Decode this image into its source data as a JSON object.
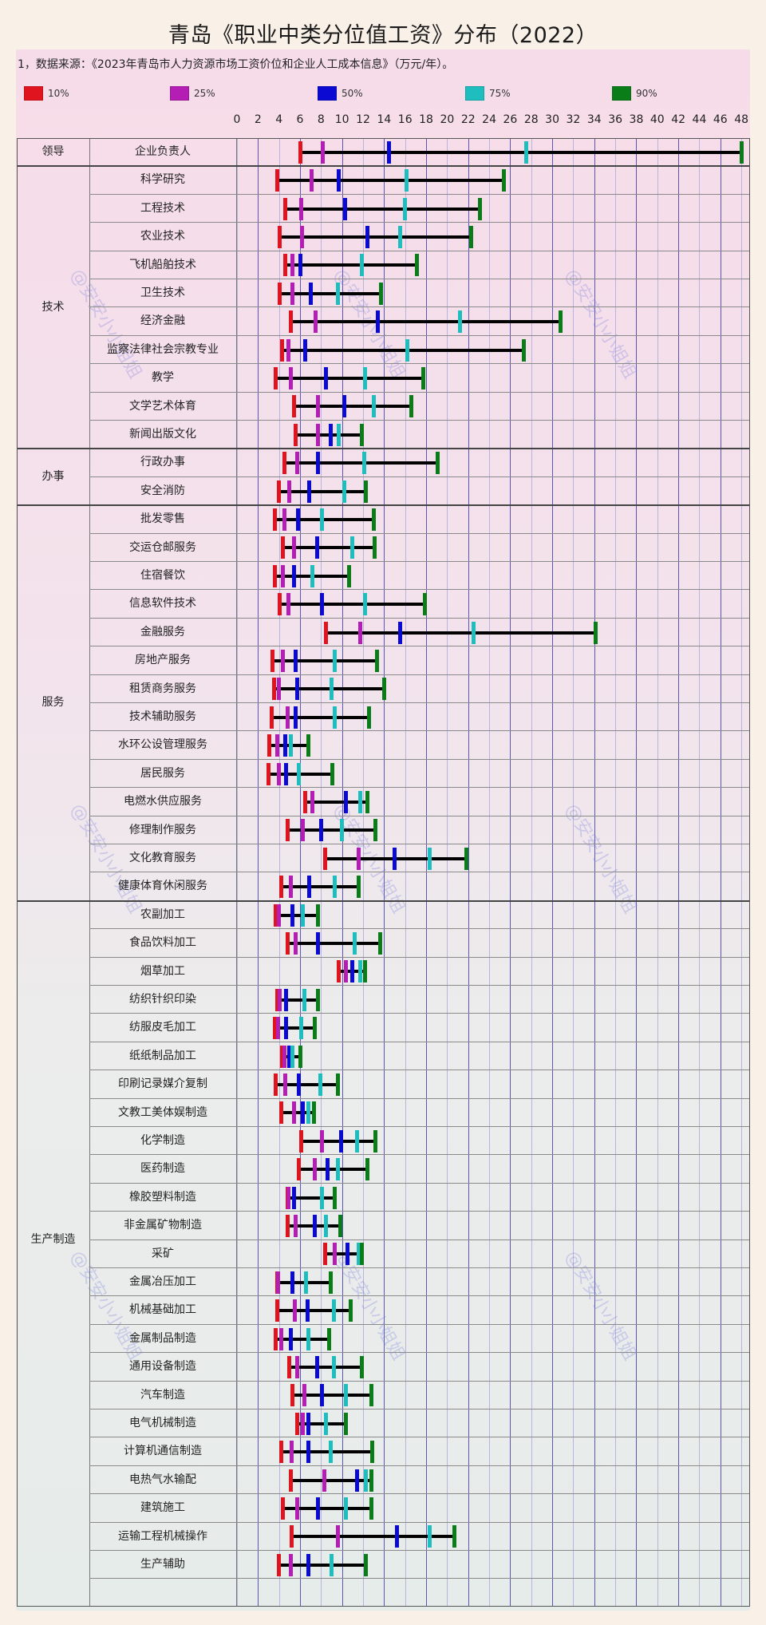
{
  "title": "青岛《职业中类分位值工资》分布（2022）",
  "source_note": "1，数据来源：《2023年青岛市人力资源市场工资价位和企业人工成本信息》（万元/年）。",
  "legend": [
    {
      "label": "10%",
      "color": "#e0141e"
    },
    {
      "label": "25%",
      "color": "#b41eb4"
    },
    {
      "label": "50%",
      "color": "#0a0ad2"
    },
    {
      "label": "75%",
      "color": "#1ebebe"
    },
    {
      "label": "90%",
      "color": "#0a7d19"
    }
  ],
  "watermark": "@安安小小姐姐",
  "chart_data": {
    "type": "range-percentile",
    "title": "青岛《职业中类分位值工资》分布（2022）",
    "unit": "万元/年",
    "xlabel": "",
    "ylabel": "",
    "xlim": [
      0,
      48
    ],
    "xticks": [
      0,
      2,
      4,
      6,
      8,
      10,
      12,
      14,
      16,
      18,
      20,
      22,
      24,
      26,
      28,
      30,
      32,
      34,
      36,
      38,
      40,
      42,
      44,
      46,
      48
    ],
    "grid": true,
    "series_names": [
      "10%",
      "25%",
      "50%",
      "75%",
      "90%"
    ],
    "groups": [
      {
        "category": "领导",
        "items": [
          {
            "name": "企业负责人",
            "values": [
              6.0,
              8.2,
              14.5,
              27.5,
              48.0
            ]
          }
        ]
      },
      {
        "category": "技术",
        "items": [
          {
            "name": "科学研究",
            "values": [
              3.8,
              7.1,
              9.7,
              16.1,
              25.4
            ]
          },
          {
            "name": "工程技术",
            "values": [
              4.6,
              6.1,
              10.3,
              16.0,
              23.1
            ]
          },
          {
            "name": "农业技术",
            "values": [
              4.1,
              6.2,
              12.4,
              15.5,
              22.3
            ]
          },
          {
            "name": "飞机船舶技术",
            "values": [
              4.6,
              5.3,
              6.0,
              11.9,
              17.1
            ]
          },
          {
            "name": "卫生技术",
            "values": [
              4.1,
              5.3,
              7.0,
              9.6,
              13.7
            ]
          },
          {
            "name": "经济金融",
            "values": [
              5.1,
              7.5,
              13.4,
              21.2,
              30.8
            ]
          },
          {
            "name": "监察法律社会宗教专业",
            "values": [
              4.3,
              4.9,
              6.5,
              16.2,
              27.3
            ]
          },
          {
            "name": "教学",
            "values": [
              3.7,
              5.1,
              8.5,
              12.2,
              17.7
            ]
          },
          {
            "name": "文学艺术体育",
            "values": [
              5.4,
              7.7,
              10.2,
              13.0,
              16.6
            ]
          },
          {
            "name": "新闻出版文化",
            "values": [
              5.6,
              7.7,
              8.9,
              9.7,
              11.9
            ]
          }
        ]
      },
      {
        "category": "办事",
        "items": [
          {
            "name": "行政办事",
            "values": [
              4.5,
              5.7,
              7.7,
              12.1,
              19.1
            ]
          },
          {
            "name": "安全消防",
            "values": [
              4.0,
              5.0,
              6.9,
              10.2,
              12.3
            ]
          }
        ]
      },
      {
        "category": "服务",
        "items": [
          {
            "name": "批发零售",
            "values": [
              3.6,
              4.5,
              5.8,
              8.1,
              13.0
            ]
          },
          {
            "name": "交运仓邮服务",
            "values": [
              4.4,
              5.4,
              7.6,
              11.0,
              13.1
            ]
          },
          {
            "name": "住宿餐饮",
            "values": [
              3.6,
              4.4,
              5.4,
              7.2,
              10.7
            ]
          },
          {
            "name": "信息软件技术",
            "values": [
              4.1,
              4.9,
              8.1,
              12.2,
              17.9
            ]
          },
          {
            "name": "金融服务",
            "values": [
              8.5,
              11.7,
              15.5,
              22.5,
              34.1
            ]
          },
          {
            "name": "房地产服务",
            "values": [
              3.4,
              4.4,
              5.6,
              9.3,
              13.3
            ]
          },
          {
            "name": "租赁商务服务",
            "values": [
              3.5,
              4.0,
              5.7,
              9.0,
              14.0
            ]
          },
          {
            "name": "技术辅助服务",
            "values": [
              3.3,
              4.8,
              5.6,
              9.3,
              12.6
            ]
          },
          {
            "name": "水环公设管理服务",
            "values": [
              3.1,
              3.8,
              4.6,
              5.1,
              6.8
            ]
          },
          {
            "name": "居民服务",
            "values": [
              3.0,
              4.0,
              4.7,
              5.9,
              9.1
            ]
          },
          {
            "name": "电燃水供应服务",
            "values": [
              6.5,
              7.2,
              10.4,
              11.7,
              12.4
            ]
          },
          {
            "name": "修理制作服务",
            "values": [
              4.8,
              6.3,
              8.0,
              10.0,
              13.2
            ]
          },
          {
            "name": "文化教育服务",
            "values": [
              8.4,
              11.6,
              15.0,
              18.3,
              21.8
            ]
          },
          {
            "name": "健康体育休闲服务",
            "values": [
              4.2,
              5.1,
              6.9,
              9.3,
              11.6
            ]
          }
        ]
      },
      {
        "category": "生产制造",
        "items": [
          {
            "name": "农副加工",
            "values": [
              3.7,
              4.0,
              5.3,
              6.3,
              7.7
            ]
          },
          {
            "name": "食品饮料加工",
            "values": [
              4.8,
              5.6,
              7.7,
              11.2,
              13.6
            ]
          },
          {
            "name": "烟草加工",
            "values": [
              9.7,
              10.4,
              11.0,
              11.7,
              12.2
            ]
          },
          {
            "name": "纺织针织印染",
            "values": [
              3.8,
              4.1,
              4.7,
              6.4,
              7.7
            ]
          },
          {
            "name": "纺服皮毛加工",
            "values": [
              3.6,
              3.9,
              4.7,
              6.1,
              7.4
            ]
          },
          {
            "name": "纸纸制品加工",
            "values": [
              4.3,
              4.5,
              5.0,
              5.3,
              6.0
            ]
          },
          {
            "name": "印刷记录媒介复制",
            "values": [
              3.7,
              4.6,
              5.9,
              7.9,
              9.6
            ]
          },
          {
            "name": "文教工美体娱制造",
            "values": [
              4.2,
              5.4,
              6.3,
              6.8,
              7.3
            ]
          },
          {
            "name": "化学制造",
            "values": [
              6.1,
              8.1,
              9.9,
              11.4,
              13.2
            ]
          },
          {
            "name": "医药制造",
            "values": [
              5.9,
              7.4,
              8.6,
              9.6,
              12.4
            ]
          },
          {
            "name": "橡胶塑料制造",
            "values": [
              4.8,
              4.9,
              5.4,
              8.1,
              9.3
            ]
          },
          {
            "name": "非金属矿物制造",
            "values": [
              4.8,
              5.6,
              7.4,
              8.5,
              9.8
            ]
          },
          {
            "name": "采矿",
            "values": [
              8.4,
              9.3,
              10.5,
              11.6,
              11.9
            ]
          },
          {
            "name": "金属冶压加工",
            "values": [
              3.8,
              3.9,
              5.3,
              6.6,
              8.9
            ]
          },
          {
            "name": "机械基础加工",
            "values": [
              3.8,
              5.5,
              6.7,
              9.2,
              10.8
            ]
          },
          {
            "name": "金属制品制造",
            "values": [
              3.7,
              4.2,
              5.1,
              6.8,
              8.8
            ]
          },
          {
            "name": "通用设备制造",
            "values": [
              5.0,
              5.7,
              7.6,
              9.2,
              11.9
            ]
          },
          {
            "name": "汽车制造",
            "values": [
              5.3,
              6.4,
              8.1,
              10.4,
              12.8
            ]
          },
          {
            "name": "电气机械制造",
            "values": [
              5.7,
              6.3,
              6.8,
              8.5,
              10.4
            ]
          },
          {
            "name": "计算机通信制造",
            "values": [
              4.2,
              5.2,
              6.8,
              8.9,
              12.9
            ]
          },
          {
            "name": "电热气水输配",
            "values": [
              5.1,
              8.3,
              11.4,
              12.3,
              12.8
            ]
          },
          {
            "name": "建筑施工",
            "values": [
              4.4,
              5.7,
              7.7,
              10.4,
              12.8
            ]
          },
          {
            "name": "运输工程机械操作",
            "values": [
              5.2,
              9.6,
              15.2,
              18.3,
              20.7
            ]
          },
          {
            "name": "生产辅助",
            "values": [
              4.0,
              5.1,
              6.8,
              9.0,
              12.3
            ]
          }
        ]
      }
    ]
  }
}
